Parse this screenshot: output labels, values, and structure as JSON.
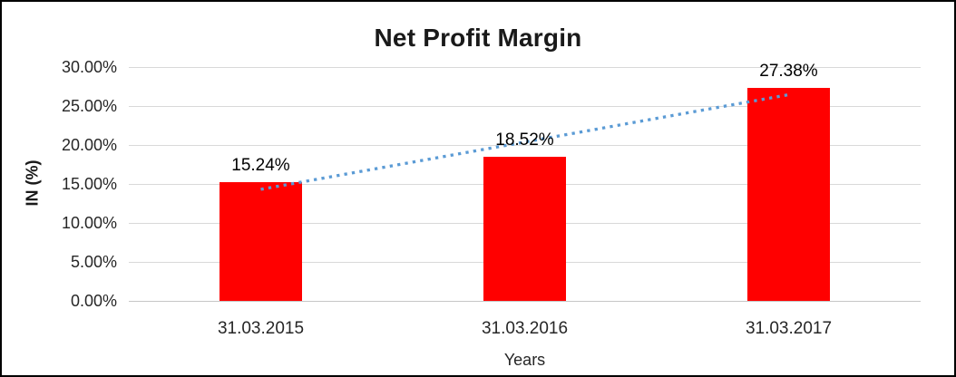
{
  "chart_data": {
    "type": "bar",
    "title": "Net Profit Margin",
    "categories": [
      "31.03.2015",
      "31.03.2016",
      "31.03.2017"
    ],
    "values": [
      15.24,
      18.52,
      27.38
    ],
    "data_labels": [
      "15.24%",
      "18.52%",
      "27.38%"
    ],
    "xlabel": "Years",
    "ylabel": "IN (%)",
    "ylim": [
      0,
      30
    ],
    "ytick_labels": [
      "30.00%",
      "25.00%",
      "20.00%",
      "15.00%",
      "10.00%",
      "5.00%",
      "0.00%"
    ],
    "grid": true,
    "legend": false,
    "bar_color": "#FF0000",
    "gridline_color": "#D9D9D9",
    "trendline": {
      "type": "linear",
      "style": "dotted",
      "color": "#5B9BD5"
    }
  }
}
